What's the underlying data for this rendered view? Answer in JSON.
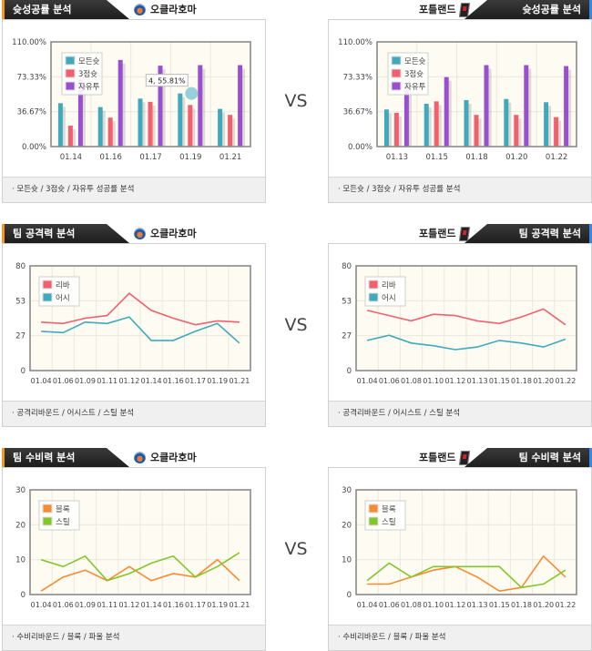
{
  "teams": {
    "home": "오클라호마",
    "away": "포틀랜드"
  },
  "vs_label": "VS",
  "sections": [
    {
      "title": "슛성공률 분석",
      "footer": "모든슛 / 3점슛 / 자유투 성공률 분석"
    },
    {
      "title": "팀 공격력 분석",
      "footer": "공격리바운드 / 어시스트 / 스틸 분석"
    },
    {
      "title": "팀 수비력 분석",
      "footer": "수비리바운드 / 블록 / 파울 분석"
    }
  ],
  "chart_data": [
    {
      "id": "shoot-home",
      "type": "bar",
      "team": "오클라호마",
      "categories": [
        "01.14",
        "01.16",
        "01.17",
        "01.19",
        "01.21"
      ],
      "ylim": [
        0,
        110
      ],
      "yticks": [
        0,
        36.67,
        73.33,
        110
      ],
      "ytick_labels": [
        "0.00%",
        "36.67%",
        "73.33%",
        "110.00%"
      ],
      "series": [
        {
          "name": "모든슛",
          "color": "#3fa9bd",
          "values": [
            45.6,
            41.5,
            50.4,
            55.81,
            39.6
          ]
        },
        {
          "name": "3점슛",
          "color": "#f25f6e",
          "values": [
            22,
            30.4,
            47,
            43.7,
            33.3
          ]
        },
        {
          "name": "자유투",
          "color": "#9b4fd0",
          "values": [
            70,
            91,
            85,
            85.6,
            85.6
          ]
        }
      ],
      "tooltip": {
        "text": "4, 55.81%",
        "category_index": 3,
        "series_index": 0
      }
    },
    {
      "id": "shoot-away",
      "type": "bar",
      "team": "포틀랜드",
      "categories": [
        "01.13",
        "01.15",
        "01.18",
        "01.20",
        "01.22"
      ],
      "ylim": [
        0,
        110
      ],
      "yticks": [
        0,
        36.67,
        73.33,
        110
      ],
      "ytick_labels": [
        "0.00%",
        "36.67%",
        "73.33%",
        "110.00%"
      ],
      "series": [
        {
          "name": "모든슛",
          "color": "#3fa9bd",
          "values": [
            39,
            45,
            48.8,
            50,
            46.6
          ]
        },
        {
          "name": "3점슛",
          "color": "#f25f6e",
          "values": [
            35.5,
            47.5,
            33.3,
            33.3,
            31
          ]
        },
        {
          "name": "자유투",
          "color": "#9b4fd0",
          "values": [
            65,
            73,
            85.6,
            85.6,
            84.6
          ]
        }
      ]
    },
    {
      "id": "offense-home",
      "type": "line",
      "team": "오클라호마",
      "categories": [
        "01.04",
        "01.06",
        "01.09",
        "01.11",
        "01.12",
        "01.14",
        "01.16",
        "01.17",
        "01.19",
        "01.21"
      ],
      "ylim": [
        0,
        80
      ],
      "yticks": [
        0,
        26.67,
        53.33,
        80
      ],
      "ytick_labels": [
        "0",
        "27",
        "53",
        "80"
      ],
      "series": [
        {
          "name": "리바",
          "color": "#f2606e",
          "values": [
            37,
            36,
            40,
            42,
            59,
            46,
            40,
            35,
            38,
            37
          ]
        },
        {
          "name": "어시",
          "color": "#3fa9bd",
          "values": [
            30,
            29,
            37,
            36,
            41,
            23,
            23,
            30,
            36,
            21
          ]
        }
      ]
    },
    {
      "id": "offense-away",
      "type": "line",
      "team": "포틀랜드",
      "categories": [
        "01.04",
        "01.06",
        "01.08",
        "01.10",
        "01.12",
        "01.13",
        "01.15",
        "01.18",
        "01.20",
        "01.22"
      ],
      "ylim": [
        0,
        80
      ],
      "yticks": [
        0,
        26.67,
        53.33,
        80
      ],
      "ytick_labels": [
        "0",
        "27",
        "53",
        "80"
      ],
      "series": [
        {
          "name": "리바",
          "color": "#f2606e",
          "values": [
            46,
            42,
            38,
            43,
            42,
            38,
            36,
            41,
            47,
            35
          ]
        },
        {
          "name": "어시",
          "color": "#3fa9bd",
          "values": [
            23,
            27,
            21,
            19,
            16,
            18,
            23,
            21,
            18,
            24
          ]
        }
      ]
    },
    {
      "id": "defense-home",
      "type": "line",
      "team": "오클라호마",
      "categories": [
        "01.04",
        "01.06",
        "01.09",
        "01.11",
        "01.12",
        "01.14",
        "01.16",
        "01.17",
        "01.19",
        "01.21"
      ],
      "ylim": [
        0,
        30
      ],
      "yticks": [
        0,
        10,
        20,
        30
      ],
      "ytick_labels": [
        "0",
        "10",
        "20",
        "30"
      ],
      "series": [
        {
          "name": "블록",
          "color": "#f98a32",
          "values": [
            1,
            5,
            7,
            4,
            8,
            4,
            6,
            5,
            10,
            4
          ]
        },
        {
          "name": "스틸",
          "color": "#84c62a",
          "values": [
            10,
            8,
            11,
            4,
            6,
            9,
            11,
            5,
            8,
            12
          ]
        }
      ]
    },
    {
      "id": "defense-away",
      "type": "line",
      "team": "포틀랜드",
      "categories": [
        "01.04",
        "01.06",
        "01.08",
        "01.10",
        "01.12",
        "01.13",
        "01.15",
        "01.18",
        "01.20",
        "01.22"
      ],
      "ylim": [
        0,
        30
      ],
      "yticks": [
        0,
        10,
        20,
        30
      ],
      "ytick_labels": [
        "0",
        "10",
        "20",
        "30"
      ],
      "series": [
        {
          "name": "블록",
          "color": "#f98a32",
          "values": [
            3,
            3,
            5,
            7,
            8,
            5,
            1,
            2,
            11,
            5
          ]
        },
        {
          "name": "스틸",
          "color": "#84c62a",
          "values": [
            4,
            9,
            5,
            8,
            8,
            8,
            8,
            2,
            3,
            7
          ]
        }
      ]
    }
  ]
}
